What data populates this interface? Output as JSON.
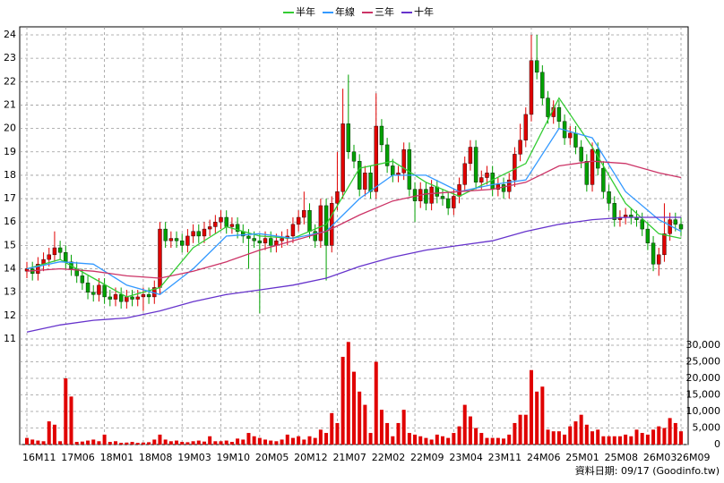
{
  "chart_data": {
    "type": "candlestick",
    "categories": [
      "16M11",
      null,
      null,
      null,
      null,
      null,
      null,
      "17M06",
      null,
      null,
      null,
      null,
      null,
      null,
      "18M01",
      null,
      null,
      null,
      null,
      null,
      null,
      "18M08",
      null,
      null,
      null,
      null,
      null,
      null,
      "19M03",
      null,
      null,
      null,
      null,
      null,
      null,
      "19M10",
      null,
      null,
      null,
      null,
      null,
      null,
      "20M05",
      null,
      null,
      null,
      null,
      null,
      null,
      "20M12",
      null,
      null,
      null,
      null,
      null,
      null,
      "21M07",
      null,
      null,
      null,
      null,
      null,
      null,
      "22M02",
      null,
      null,
      null,
      null,
      null,
      null,
      "22M09",
      null,
      null,
      null,
      null,
      null,
      null,
      "23M04",
      null,
      null,
      null,
      null,
      null,
      null,
      "23M11",
      null,
      null,
      null,
      null,
      null,
      null,
      "24M06",
      null,
      null,
      null,
      null,
      null,
      null,
      "25M01",
      null,
      null,
      null,
      null,
      null,
      null,
      "25M08",
      null,
      null,
      null,
      null,
      null,
      null,
      "26M03",
      null,
      null,
      null,
      null,
      null,
      "26M09"
    ],
    "open": [
      13.9,
      14.0,
      13.8,
      14.2,
      14.4,
      14.6,
      14.9,
      14.7,
      14.3,
      14.0,
      13.7,
      13.4,
      13.0,
      12.9,
      13.3,
      12.8,
      12.7,
      12.9,
      12.6,
      12.8,
      12.7,
      12.8,
      12.9,
      12.8,
      13.2,
      15.7,
      15.2,
      15.3,
      15.2,
      15.0,
      15.4,
      15.6,
      15.4,
      15.7,
      15.8,
      16.0,
      16.2,
      15.8,
      15.9,
      15.6,
      15.4,
      15.3,
      15.2,
      15.1,
      15.3,
      15.0,
      15.2,
      15.3,
      15.4,
      15.9,
      16.2,
      16.5,
      15.6,
      15.2,
      16.7,
      15.0,
      16.8,
      17.3,
      20.2,
      19.0,
      18.6,
      17.4,
      18.1,
      17.3,
      20.1,
      19.3,
      18.4,
      18.0,
      18.1,
      19.1,
      17.4,
      16.9,
      17.4,
      16.8,
      17.5,
      17.1,
      17.0,
      16.6,
      17.1,
      17.6,
      18.5,
      19.2,
      17.7,
      17.9,
      18.1,
      17.4,
      17.6,
      17.3,
      17.8,
      18.9,
      19.5,
      20.6,
      22.9,
      22.4,
      21.3,
      20.5,
      20.9,
      20.3,
      19.6,
      19.8,
      19.2,
      18.6,
      17.6,
      19.1,
      18.3,
      17.3,
      16.8,
      16.1,
      16.2,
      16.3,
      16.2,
      16.1,
      15.7,
      15.1,
      14.2,
      14.6,
      15.5,
      16.1,
      15.9
    ],
    "high": [
      14.3,
      14.3,
      14.5,
      14.7,
      14.9,
      15.6,
      15.2,
      15.0,
      14.6,
      14.3,
      14.0,
      13.7,
      13.3,
      13.6,
      13.6,
      13.1,
      13.2,
      13.2,
      13.1,
      13.1,
      13.1,
      13.2,
      13.2,
      13.5,
      16.0,
      16.0,
      15.6,
      15.6,
      15.5,
      15.7,
      15.9,
      15.9,
      16.0,
      16.1,
      16.3,
      16.5,
      16.5,
      16.2,
      16.2,
      15.9,
      15.7,
      15.6,
      15.5,
      15.6,
      15.6,
      15.5,
      15.6,
      15.7,
      16.2,
      16.5,
      17.3,
      16.8,
      15.9,
      17.0,
      17.0,
      17.1,
      19.0,
      21.7,
      22.3,
      19.3,
      18.9,
      18.4,
      18.4,
      21.5,
      20.4,
      19.6,
      18.7,
      18.4,
      19.4,
      19.4,
      17.7,
      17.7,
      17.7,
      17.8,
      17.8,
      17.4,
      17.3,
      17.4,
      17.9,
      18.8,
      19.5,
      19.5,
      18.2,
      18.4,
      18.4,
      17.9,
      17.9,
      18.1,
      19.2,
      20.2,
      20.9,
      24.0,
      24.0,
      22.7,
      21.6,
      21.2,
      21.2,
      20.6,
      20.1,
      20.1,
      19.5,
      18.9,
      19.4,
      19.4,
      18.6,
      17.6,
      17.1,
      16.5,
      16.6,
      16.6,
      16.5,
      16.4,
      16.0,
      15.4,
      14.9,
      16.8,
      16.4,
      16.4,
      16.2
    ],
    "low": [
      13.6,
      13.5,
      13.5,
      13.9,
      14.1,
      14.3,
      14.4,
      14.0,
      13.7,
      13.4,
      13.1,
      12.7,
      12.6,
      12.6,
      12.5,
      12.4,
      12.4,
      12.3,
      12.3,
      12.4,
      12.4,
      12.2,
      12.5,
      12.5,
      12.9,
      14.9,
      14.9,
      14.9,
      14.7,
      14.7,
      15.1,
      15.1,
      15.1,
      15.4,
      15.5,
      15.7,
      15.5,
      15.5,
      15.3,
      15.1,
      14.0,
      14.9,
      12.1,
      14.8,
      14.7,
      14.7,
      14.9,
      15.0,
      15.1,
      15.6,
      15.9,
      15.3,
      14.9,
      14.9,
      13.5,
      14.7,
      16.5,
      17.0,
      18.7,
      18.3,
      17.1,
      17.1,
      17.0,
      17.0,
      19.0,
      18.1,
      17.7,
      17.7,
      17.8,
      17.1,
      16.0,
      16.6,
      16.5,
      16.5,
      16.8,
      16.7,
      16.3,
      16.3,
      16.8,
      17.3,
      18.2,
      17.4,
      17.4,
      17.6,
      17.1,
      17.1,
      17.0,
      17.0,
      17.5,
      18.6,
      19.2,
      20.3,
      22.1,
      21.0,
      20.2,
      20.2,
      20.0,
      19.3,
      19.3,
      18.9,
      18.3,
      17.3,
      17.3,
      18.0,
      17.0,
      16.5,
      15.8,
      15.8,
      15.9,
      15.9,
      15.8,
      15.4,
      14.8,
      13.9,
      13.7,
      14.3,
      15.2,
      15.6,
      15.4
    ],
    "close": [
      14.0,
      13.8,
      14.2,
      14.4,
      14.6,
      14.9,
      14.7,
      14.3,
      14.0,
      13.7,
      13.4,
      13.0,
      12.9,
      13.3,
      12.8,
      12.7,
      12.9,
      12.6,
      12.8,
      12.7,
      12.8,
      12.9,
      12.8,
      13.2,
      15.7,
      15.2,
      15.3,
      15.2,
      15.0,
      15.4,
      15.6,
      15.4,
      15.7,
      15.8,
      16.0,
      16.2,
      15.8,
      15.9,
      15.6,
      15.4,
      15.3,
      15.2,
      15.1,
      15.3,
      15.0,
      15.2,
      15.3,
      15.4,
      15.9,
      16.2,
      16.5,
      15.6,
      15.2,
      16.7,
      15.0,
      16.8,
      17.3,
      20.2,
      19.0,
      18.6,
      17.4,
      18.1,
      17.3,
      20.1,
      19.3,
      18.4,
      18.0,
      18.1,
      19.1,
      17.4,
      16.9,
      17.4,
      16.8,
      17.5,
      17.1,
      17.0,
      16.6,
      17.1,
      17.6,
      18.5,
      19.2,
      17.7,
      17.9,
      18.1,
      17.4,
      17.6,
      17.3,
      17.8,
      18.9,
      19.5,
      20.6,
      22.9,
      22.4,
      21.3,
      20.5,
      20.9,
      20.3,
      19.6,
      19.8,
      19.2,
      18.6,
      17.6,
      19.1,
      18.3,
      17.3,
      16.8,
      16.1,
      16.2,
      16.3,
      16.2,
      16.1,
      15.7,
      15.1,
      14.2,
      14.6,
      15.5,
      16.1,
      15.9,
      15.7
    ],
    "volume": [
      2000,
      1500,
      1200,
      1000,
      7000,
      6000,
      1000,
      20000,
      14500,
      800,
      900,
      1200,
      1500,
      1000,
      3000,
      800,
      1000,
      500,
      600,
      800,
      500,
      600,
      700,
      1500,
      3000,
      1500,
      1000,
      1200,
      800,
      700,
      1000,
      1200,
      900,
      2500,
      1000,
      1000,
      1200,
      800,
      1800,
      1500,
      3500,
      2500,
      2000,
      1500,
      1200,
      1000,
      1500,
      3000,
      2000,
      2500,
      1500,
      2500,
      2000,
      4500,
      3500,
      9500,
      6500,
      26500,
      31000,
      22000,
      16000,
      12000,
      3500,
      25000,
      10500,
      6500,
      2500,
      6500,
      10500,
      3500,
      3000,
      2500,
      2000,
      1500,
      3000,
      2500,
      2000,
      3500,
      5500,
      12000,
      8500,
      5000,
      3500,
      2000,
      2000,
      2000,
      1800,
      3000,
      6500,
      9000,
      9000,
      22500,
      16000,
      17500,
      4500,
      4000,
      4000,
      3000,
      5500,
      7000,
      9000,
      6000,
      4000,
      4500,
      2500,
      2500,
      2500,
      2500,
      3000,
      2500,
      4500,
      3500,
      3000,
      4500,
      5500,
      5000,
      8000,
      6500,
      4000
    ],
    "up_color": "#e00000",
    "down_color": "#00a000",
    "volume_color": "#e00000",
    "series": [
      {
        "name": "半年",
        "color": "#33cc33",
        "x": [
          0,
          6,
          12,
          18,
          24,
          30,
          36,
          42,
          48,
          54,
          60,
          66,
          72,
          78,
          84,
          90,
          96,
          102,
          108,
          114,
          118
        ],
        "values": [
          14.0,
          14.4,
          13.6,
          12.8,
          13.2,
          14.9,
          15.8,
          15.4,
          15.3,
          15.9,
          18.3,
          18.6,
          17.7,
          17.1,
          17.8,
          18.5,
          21.3,
          19.2,
          16.8,
          15.5,
          15.3
        ]
      },
      {
        "name": "年線",
        "color": "#3399ff",
        "x": [
          0,
          6,
          12,
          18,
          24,
          30,
          36,
          42,
          48,
          54,
          60,
          66,
          72,
          78,
          84,
          90,
          96,
          102,
          108,
          114,
          118
        ],
        "values": [
          14.0,
          14.3,
          14.2,
          13.3,
          12.9,
          14.0,
          15.4,
          15.5,
          15.3,
          15.6,
          17.0,
          18.0,
          18.0,
          17.3,
          17.6,
          17.8,
          20.0,
          19.6,
          17.3,
          16.1,
          15.6
        ]
      },
      {
        "name": "三年",
        "color": "#cc3366",
        "x": [
          0,
          6,
          12,
          18,
          24,
          30,
          36,
          42,
          48,
          54,
          60,
          66,
          72,
          78,
          84,
          90,
          96,
          102,
          108,
          114,
          118
        ],
        "values": [
          13.9,
          14.0,
          13.9,
          13.7,
          13.6,
          13.9,
          14.3,
          14.8,
          15.2,
          15.6,
          16.3,
          16.9,
          17.2,
          17.3,
          17.4,
          17.7,
          18.4,
          18.6,
          18.5,
          18.1,
          17.9
        ]
      },
      {
        "name": "十年",
        "color": "#6633cc",
        "x": [
          0,
          6,
          12,
          18,
          24,
          30,
          36,
          42,
          48,
          54,
          60,
          66,
          72,
          78,
          84,
          90,
          96,
          102,
          108,
          114,
          118
        ],
        "values": [
          11.3,
          11.6,
          11.8,
          11.9,
          12.2,
          12.6,
          12.9,
          13.1,
          13.3,
          13.6,
          14.1,
          14.5,
          14.8,
          15.0,
          15.2,
          15.6,
          15.9,
          16.1,
          16.2,
          16.2,
          16.2
        ]
      }
    ],
    "ylim": [
      11,
      24
    ],
    "yticks": [
      11,
      12,
      13,
      14,
      15,
      16,
      17,
      18,
      19,
      20,
      21,
      22,
      23,
      24
    ],
    "y2lim": [
      0,
      30000
    ],
    "y2ticks": [
      0,
      {
        "value": 5000,
        "label": "5,000"
      },
      {
        "value": 10000,
        "label": "10,000"
      },
      {
        "value": 15000,
        "label": "15,000"
      },
      {
        "value": 20000,
        "label": "20,000"
      },
      {
        "value": 25000,
        "label": "25,000"
      },
      {
        "value": 30000,
        "label": "30,000"
      }
    ],
    "grid": true,
    "legend": "top",
    "source": "資料日期: 09/17 (Goodinfo.tw)"
  }
}
